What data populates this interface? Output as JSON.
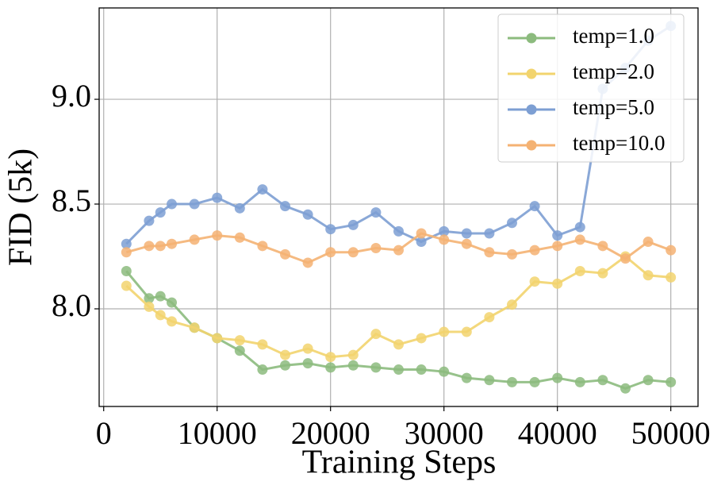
{
  "chart_data": {
    "type": "line",
    "xlabel": "Training Steps",
    "ylabel": "FID (5k)",
    "x": [
      2000,
      4000,
      5000,
      6000,
      8000,
      10000,
      12000,
      14000,
      16000,
      18000,
      20000,
      22000,
      24000,
      26000,
      28000,
      30000,
      32000,
      34000,
      36000,
      38000,
      40000,
      42000,
      44000,
      46000,
      48000,
      50000
    ],
    "series": [
      {
        "name": "temp=1.0",
        "color": "#8cbb7e",
        "values": [
          8.18,
          8.05,
          8.06,
          8.03,
          7.91,
          7.86,
          7.8,
          7.71,
          7.73,
          7.74,
          7.72,
          7.73,
          7.72,
          7.71,
          7.71,
          7.7,
          7.67,
          7.66,
          7.65,
          7.65,
          7.67,
          7.65,
          7.66,
          7.62,
          7.66,
          7.65
        ]
      },
      {
        "name": "temp=2.0",
        "color": "#f2d46e",
        "values": [
          8.11,
          8.01,
          7.97,
          7.94,
          7.91,
          7.86,
          7.85,
          7.83,
          7.78,
          7.81,
          7.77,
          7.78,
          7.88,
          7.83,
          7.86,
          7.89,
          7.89,
          7.96,
          8.02,
          8.13,
          8.12,
          8.18,
          8.17,
          8.25,
          8.16,
          8.15
        ]
      },
      {
        "name": "temp=5.0",
        "color": "#7d9fd3",
        "values": [
          8.31,
          8.42,
          8.46,
          8.5,
          8.5,
          8.53,
          8.48,
          8.57,
          8.49,
          8.45,
          8.38,
          8.4,
          8.46,
          8.37,
          8.32,
          8.37,
          8.36,
          8.36,
          8.41,
          8.49,
          8.35,
          8.39,
          9.05,
          9.15,
          9.28,
          9.35
        ]
      },
      {
        "name": "temp=10.0",
        "color": "#f4b273",
        "values": [
          8.27,
          8.3,
          8.3,
          8.31,
          8.33,
          8.35,
          8.34,
          8.3,
          8.26,
          8.22,
          8.27,
          8.27,
          8.29,
          8.28,
          8.36,
          8.33,
          8.31,
          8.27,
          8.26,
          8.28,
          8.3,
          8.33,
          8.3,
          8.24,
          8.32,
          8.28
        ]
      }
    ],
    "xlim": [
      -400,
      52400
    ],
    "xticks": [
      0,
      10000,
      20000,
      30000,
      40000,
      50000
    ],
    "ylim": [
      7.534,
      9.436
    ],
    "yticks": [
      {
        "value": 8.0,
        "label": "8.0"
      },
      {
        "value": 8.5,
        "label": "8.5"
      },
      {
        "value": 9.0,
        "label": "9.0"
      }
    ],
    "grid": true,
    "legend": "upper right"
  }
}
